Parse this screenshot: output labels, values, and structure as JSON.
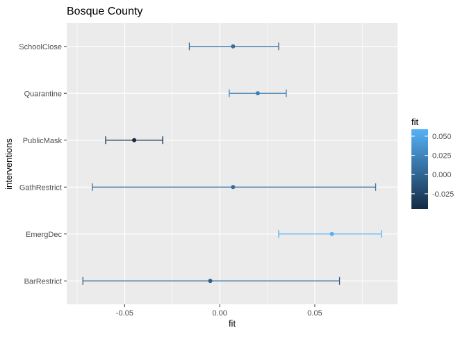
{
  "chart_data": {
    "type": "errorbar",
    "title": "Bosque County",
    "xlabel": "fit",
    "ylabel": "interventions",
    "xlim": [
      -0.0805,
      0.0935
    ],
    "x_ticks": [
      -0.05,
      0.0,
      0.05
    ],
    "x_tick_labels": [
      "-0.05",
      "0.00",
      "0.05"
    ],
    "categories": [
      "BarRestrict",
      "EmergDec",
      "GathRestrict",
      "PublicMask",
      "Quarantine",
      "SchoolClose"
    ],
    "series": [
      {
        "category": "BarRestrict",
        "fit": -0.005,
        "lower": -0.072,
        "upper": 0.063
      },
      {
        "category": "EmergDec",
        "fit": 0.059,
        "lower": 0.031,
        "upper": 0.085
      },
      {
        "category": "GathRestrict",
        "fit": 0.007,
        "lower": -0.067,
        "upper": 0.082
      },
      {
        "category": "PublicMask",
        "fit": -0.045,
        "lower": -0.06,
        "upper": -0.03
      },
      {
        "category": "Quarantine",
        "fit": 0.02,
        "lower": 0.005,
        "upper": 0.035
      },
      {
        "category": "SchoolClose",
        "fit": 0.007,
        "lower": -0.016,
        "upper": 0.031
      }
    ],
    "legend": {
      "title": "fit",
      "position": "right",
      "ticks": [
        0.05,
        0.025,
        0.0,
        -0.025
      ],
      "tick_labels": [
        "0.050",
        "0.025",
        "0.000",
        "-0.025"
      ],
      "range": [
        -0.045,
        0.059
      ],
      "color_low": "#132B43",
      "color_high": "#56B1F7"
    },
    "grid": true,
    "panel_background": "#EBEBEB",
    "grid_color": "#FFFFFF"
  }
}
